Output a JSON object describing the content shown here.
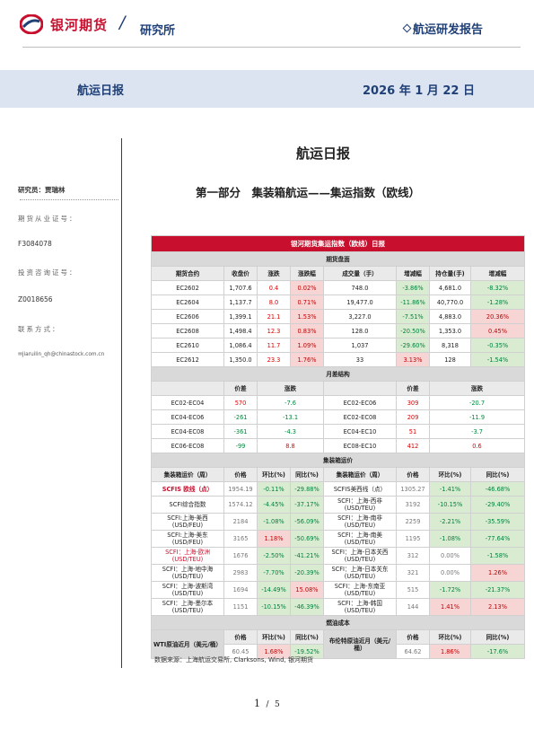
{
  "header": {
    "logo_text": "银河期货",
    "slash": "/",
    "sub": "研究所",
    "right": "航运研发报告"
  },
  "band": {
    "left": "航运日报",
    "right": "2026 年 1 月 22 日"
  },
  "sidebar": {
    "researcher": "研究员：贾瑞林",
    "license_label": "期货从业证号：",
    "license": "F3084078",
    "advisory_label": "投资咨询证号：",
    "advisory": "Z0018656",
    "contact_label": "联系方式：",
    "email": "jiaruilin_qh@chinastock.com.cn"
  },
  "report_title": "航运日报",
  "section_title": "第一部分　集装箱航运——集运指数（欧线）",
  "table": {
    "title": "银河期货集运指数（欧线）日报",
    "futures": {
      "section": "期货盘面",
      "headers": [
        "期货合约",
        "收盘价",
        "涨跌",
        "涨跌幅",
        "成交量（手）",
        "增减幅",
        "持仓量(手)",
        "增减幅"
      ],
      "rows": [
        [
          "EC2602",
          "1,707.6",
          "0.4",
          "0.02%",
          "748.0",
          "-3.86%",
          "4,681.0",
          "-8.32%"
        ],
        [
          "EC2604",
          "1,137.7",
          "8.0",
          "0.71%",
          "19,477.0",
          "-11.86%",
          "40,770.0",
          "-1.28%"
        ],
        [
          "EC2606",
          "1,399.1",
          "21.1",
          "1.53%",
          "3,227.0",
          "-7.51%",
          "4,883.0",
          "20.36%"
        ],
        [
          "EC2608",
          "1,498.4",
          "12.3",
          "0.83%",
          "128.0",
          "-20.50%",
          "1,353.0",
          "0.45%"
        ],
        [
          "EC2610",
          "1,086.4",
          "11.7",
          "1.09%",
          "1,037",
          "-29.60%",
          "8,318",
          "-0.35%"
        ],
        [
          "EC2612",
          "1,350.0",
          "23.3",
          "1.76%",
          "33",
          "3.13%",
          "128",
          "-1.54%"
        ]
      ]
    },
    "spread": {
      "section": "月差结构",
      "headers": [
        "价差",
        "涨跌",
        "价差",
        "涨跌"
      ],
      "rows": [
        [
          "EC02-EC04",
          "570",
          "-7.6",
          "EC02-EC06",
          "309",
          "-20.7"
        ],
        [
          "EC04-EC06",
          "-261",
          "-13.1",
          "EC02-EC08",
          "209",
          "-11.9"
        ],
        [
          "EC04-EC08",
          "-361",
          "-4.3",
          "EC04-EC10",
          "51",
          "-3.7"
        ],
        [
          "EC06-EC08",
          "-99",
          "8.8",
          "EC08-EC10",
          "412",
          "0.6"
        ]
      ]
    },
    "freight": {
      "section": "集装箱运价",
      "headers": [
        "集装箱运价（周）",
        "价格",
        "环比(%)",
        "同比(%)",
        "集装箱运价（周）",
        "价格",
        "环比(%)",
        "同比(%)"
      ],
      "rows": [
        [
          "SCFIS 欧线（点）",
          "1954.19",
          "-0.11%",
          "-29.88%",
          "SCFIS美西线（点）",
          "1305.27",
          "-1.41%",
          "-46.68%"
        ],
        [
          "SCFI综合指数",
          "1574.12",
          "-4.45%",
          "-37.17%",
          "SCFI：上海-西非(USD/TEU)",
          "3192",
          "-10.15%",
          "-29.40%"
        ],
        [
          "SCFI:上海-美西(USD/FEU)",
          "2184",
          "-1.08%",
          "-56.09%",
          "SCFI：上海-南非(USD/TEU)",
          "2259",
          "-2.21%",
          "-35.59%"
        ],
        [
          "SCFI:上海-美东(USD/FEU)",
          "3165",
          "1.18%",
          "-50.69%",
          "SCFI：上海-南美(USD/TEU)",
          "1195",
          "-1.08%",
          "-77.64%"
        ],
        [
          "SCFI：上海-欧洲(USD/TEU)",
          "1676",
          "-2.50%",
          "-41.21%",
          "SCFI：上海-日本关西(USD/TEU)",
          "312",
          "0.00%",
          "-1.58%"
        ],
        [
          "SCFI：上海-地中海(USD/TEU)",
          "2983",
          "-7.70%",
          "-20.39%",
          "SCFI：上海-日本关东(USD/TEU)",
          "321",
          "0.00%",
          "1.26%"
        ],
        [
          "SCFI：上海-波斯湾(USD/TEU)",
          "1694",
          "-14.49%",
          "15.08%",
          "SCFI：上海-东南亚(USD/TEU)",
          "515",
          "-1.72%",
          "-21.37%"
        ],
        [
          "SCFI：上海-墨尔本(USD/TEU)",
          "1151",
          "-10.15%",
          "-46.39%",
          "SCFI：上海-韩国(USD/TEU)",
          "144",
          "1.41%",
          "2.13%"
        ]
      ]
    },
    "fuel": {
      "section": "燃油成本",
      "headers": [
        "价格",
        "环比(%)",
        "同比(%)",
        "价格",
        "环比(%)",
        "同比(%)"
      ],
      "left_label": "WTI原油近月（美元/桶）",
      "left": [
        "60.45",
        "1.68%",
        "-19.52%"
      ],
      "right_label": "布伦特原油近月（美元/桶）",
      "right": [
        "64.62",
        "1.86%",
        "-17.6%"
      ]
    }
  },
  "source": "数据来源：上海航运交易所, Clarksons, Wind, 银河期货",
  "pager": {
    "current": "1",
    "sep": "/",
    "total": "5"
  },
  "colors": {
    "accent": "#c8102e",
    "navy": "#1f3f77",
    "band": "#dbe4f0"
  }
}
